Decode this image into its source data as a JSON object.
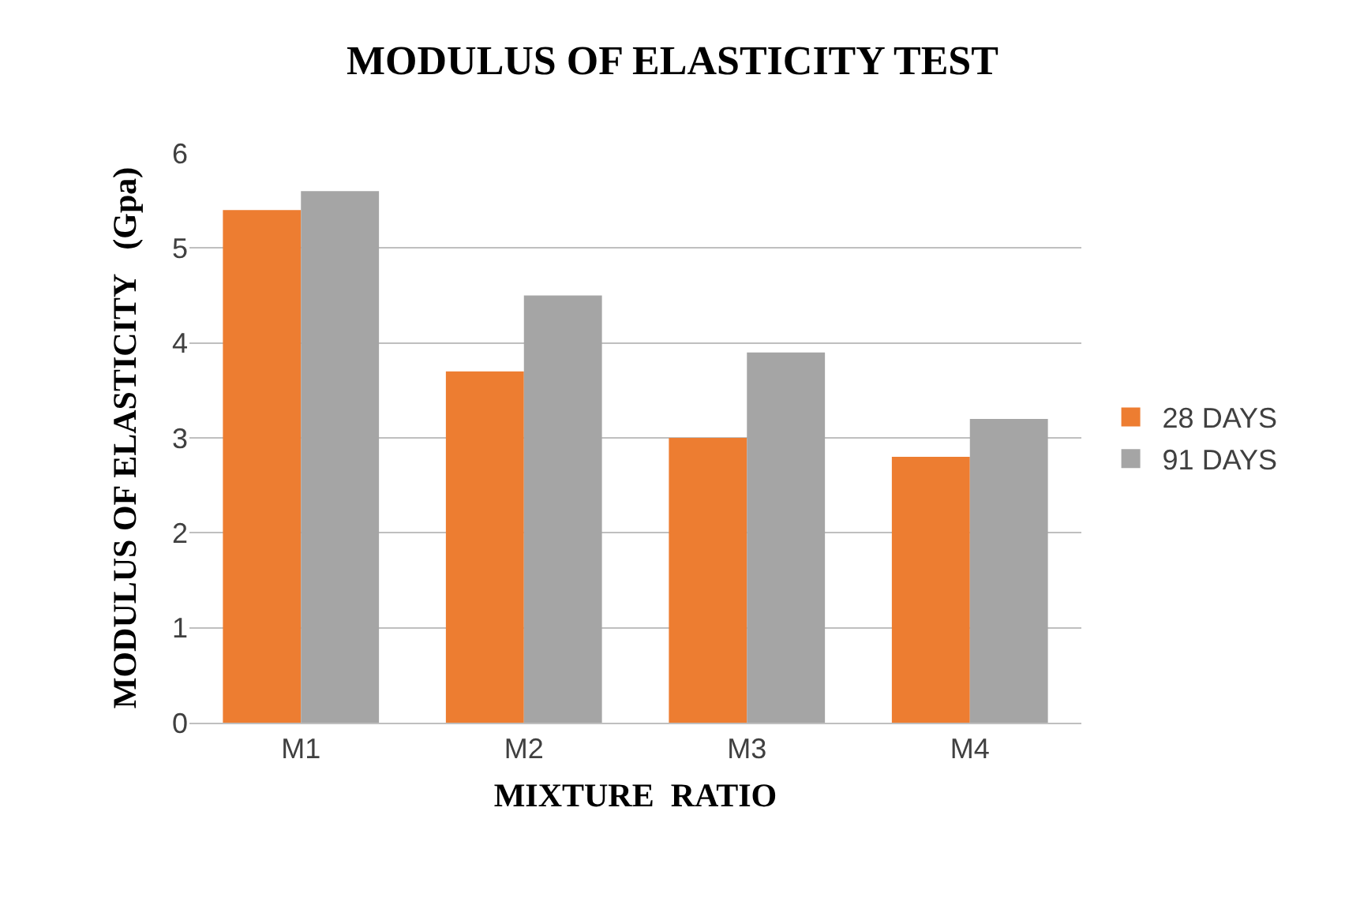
{
  "chart_data": {
    "type": "bar",
    "title": "MODULUS OF ELASTICITY TEST",
    "xlabel": "MIXTURE  RATIO",
    "ylabel": "MODULUS OF ELASTICITY   (Gpa)",
    "categories": [
      "M1",
      "M2",
      "M3",
      "M4"
    ],
    "series": [
      {
        "name": "28 DAYS",
        "color": "#ed7d31",
        "values": [
          5.4,
          3.7,
          3.0,
          2.8
        ]
      },
      {
        "name": "91 DAYS",
        "color": "#a5a5a5",
        "values": [
          5.6,
          4.5,
          3.9,
          3.2
        ]
      }
    ],
    "ylim": [
      0,
      6
    ],
    "yticks": [
      0,
      1,
      2,
      3,
      4,
      5,
      6
    ],
    "grid": "y",
    "legend": "right"
  }
}
